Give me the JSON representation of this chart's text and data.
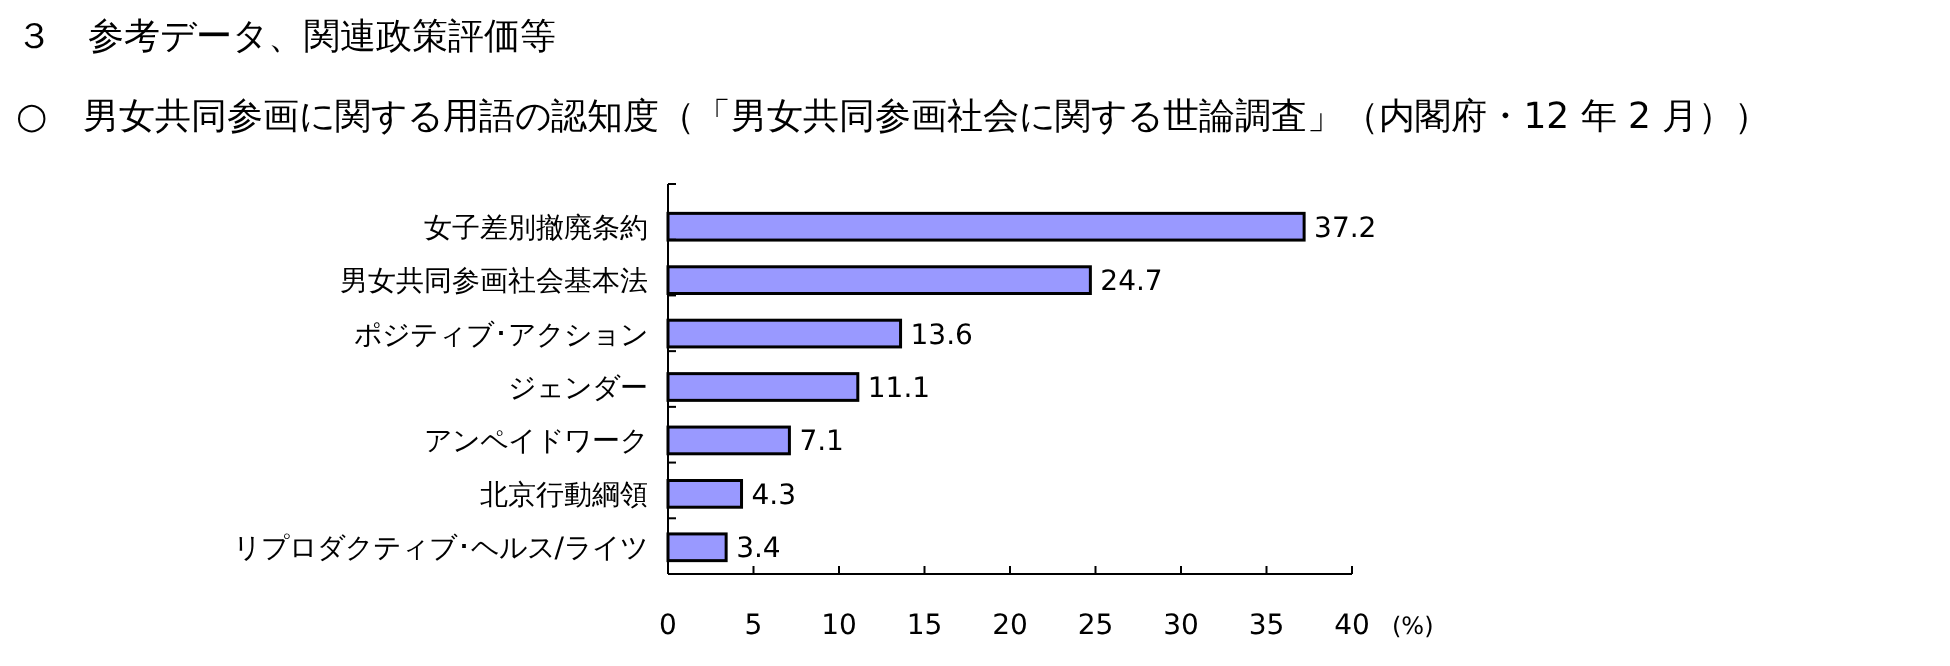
{
  "chart_data": {
    "type": "bar",
    "orientation": "horizontal",
    "title": "３　参考データ、関連政策評価等",
    "subtitle": "○　男女共同参画に関する用語の認知度（「男女共同参画社会に関する世論調査」（内閣府・12 年 2 月））",
    "xlabel": "(%)",
    "categories": [
      "女子差別撤廃条約",
      "男女共同参画社会基本法",
      "ポジティブ･アクション",
      "ジェンダー",
      "アンペイドワーク",
      "北京行動綱領",
      "リプロダクティブ･ヘルス/ライツ"
    ],
    "values": [
      37.2,
      24.7,
      13.6,
      11.1,
      7.1,
      4.3,
      3.4
    ],
    "color": "#9999ff",
    "xlim": [
      0,
      40
    ],
    "xticks": [
      0,
      5,
      10,
      15,
      20,
      25,
      30,
      35,
      40
    ],
    "data_labels": true
  }
}
